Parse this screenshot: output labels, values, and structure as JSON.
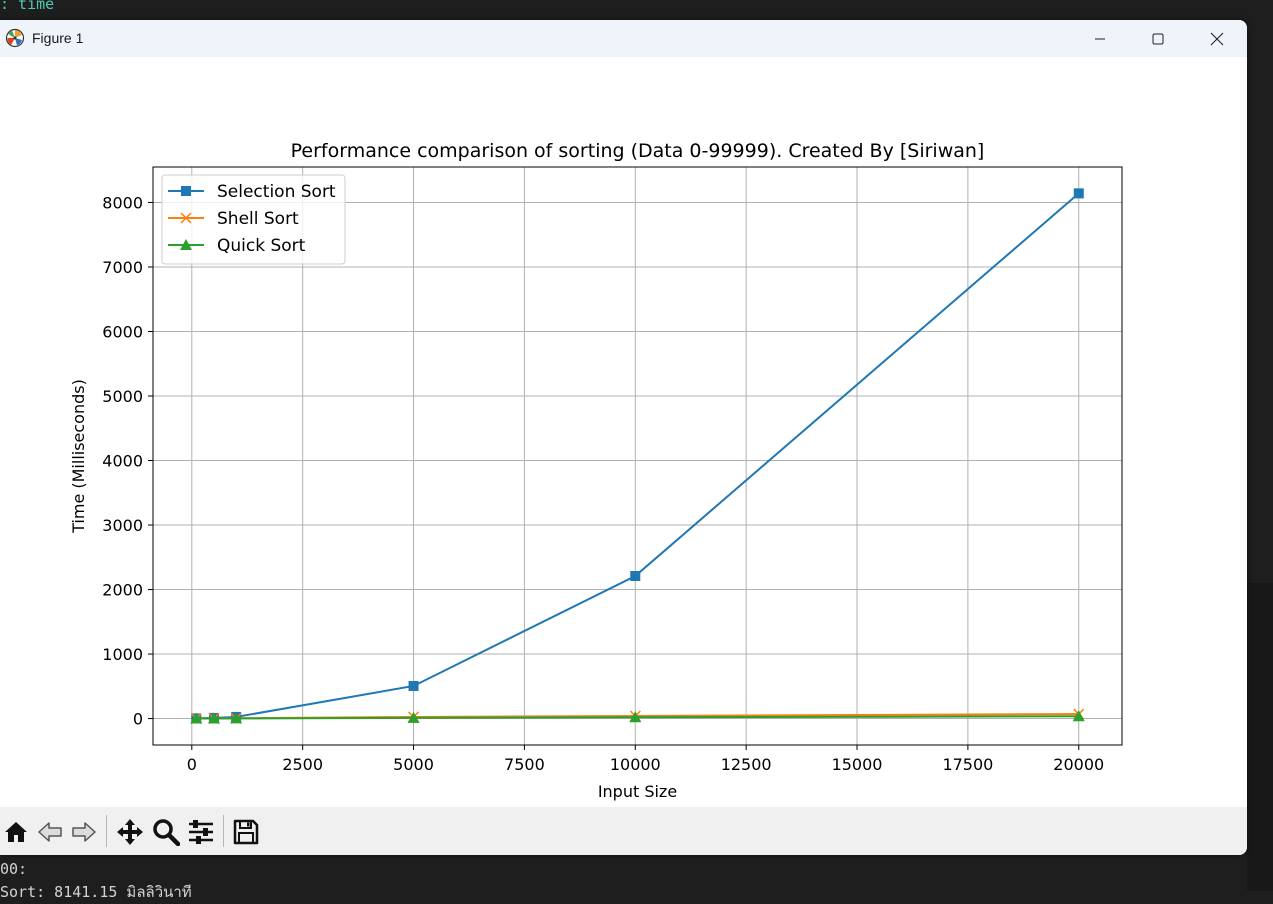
{
  "background": {
    "top_code": ": time",
    "bottom_line1": "00:",
    "bottom_line2": "Sort: 8141.15 มิลลิวินาที"
  },
  "window": {
    "title": "Figure 1",
    "app_icon": "matplotlib-icon",
    "controls": [
      "minimize-icon",
      "maximize-icon",
      "close-icon"
    ]
  },
  "toolbar": {
    "buttons": [
      "home-icon",
      "back-arrow-icon",
      "forward-arrow-icon",
      "pan-icon",
      "zoom-icon",
      "configure-subplots-icon",
      "save-icon"
    ]
  },
  "chart_data": {
    "type": "line",
    "title": "Performance comparison of sorting (Data 0-99999). Created By [Siriwan]",
    "xlabel": "Input Size",
    "ylabel": "Time (Milliseconds)",
    "x": [
      100,
      500,
      1000,
      5000,
      10000,
      20000
    ],
    "xlim": [
      -875,
      20975
    ],
    "ylim": [
      -410,
      8550
    ],
    "xticks": [
      0,
      2500,
      5000,
      7500,
      10000,
      12500,
      15000,
      17500,
      20000
    ],
    "xtick_labels": [
      "0",
      "2500",
      "5000",
      "7500",
      "10000",
      "12500",
      "15000",
      "17500",
      "20000"
    ],
    "yticks": [
      0,
      1000,
      2000,
      3000,
      4000,
      5000,
      6000,
      7000,
      8000
    ],
    "ytick_labels": [
      "0",
      "1000",
      "2000",
      "3000",
      "4000",
      "5000",
      "6000",
      "7000",
      "8000"
    ],
    "grid": true,
    "legend_position": "upper-left",
    "series": [
      {
        "name": "Selection Sort",
        "color": "#1f77b4",
        "marker": "square",
        "values": [
          2,
          10,
          25,
          505,
          2210,
          8141.15
        ]
      },
      {
        "name": "Shell Sort",
        "color": "#ff7f0e",
        "marker": "x",
        "values": [
          0,
          2,
          4,
          25,
          40,
          70
        ]
      },
      {
        "name": "Quick Sort",
        "color": "#2ca02c",
        "marker": "triangle",
        "values": [
          0,
          1,
          2,
          10,
          20,
          35
        ]
      }
    ]
  }
}
